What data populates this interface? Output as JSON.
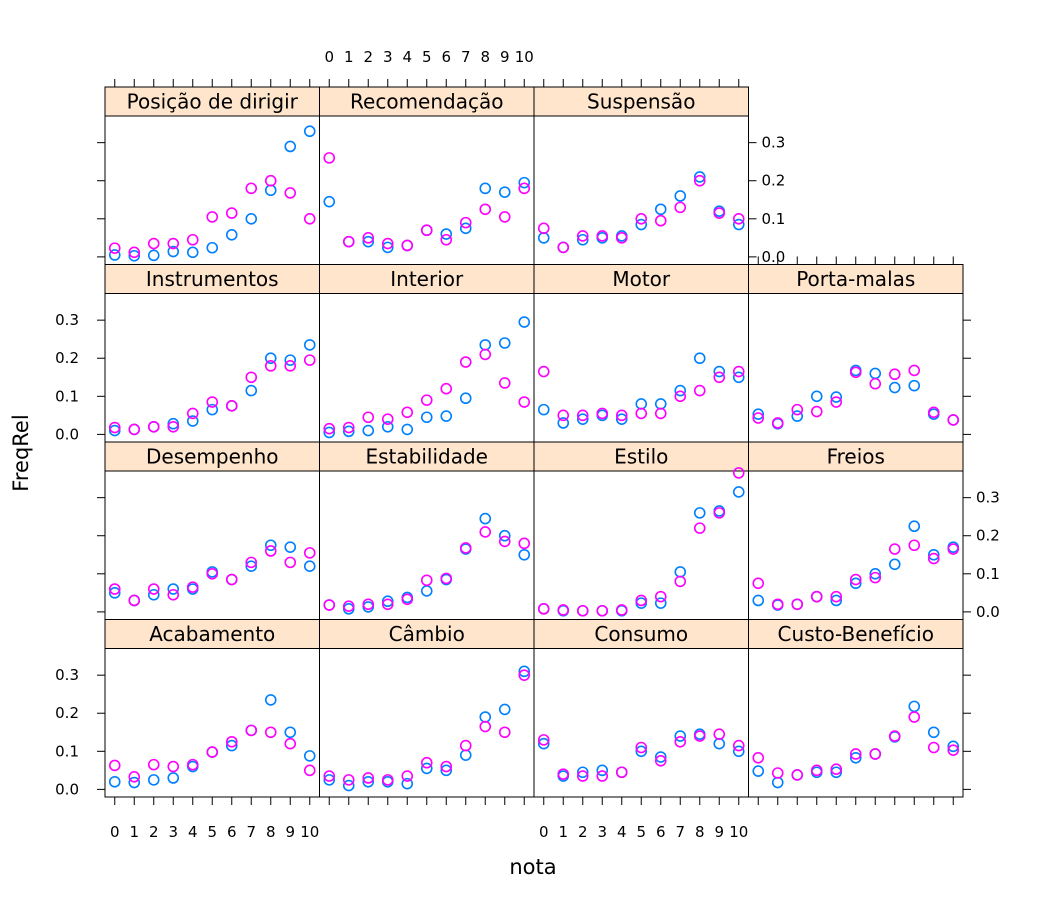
{
  "chart_data": {
    "type": "scatter",
    "layout": "lattice 4x4 panels",
    "xlabel": "nota",
    "ylabel": "FreqRel",
    "xticks": [
      "0",
      "1",
      "2",
      "3",
      "4",
      "5",
      "6",
      "7",
      "8",
      "9",
      "10"
    ],
    "yticks": [
      "0.0",
      "0.1",
      "0.2",
      "0.3"
    ],
    "ylim": [
      -0.02,
      0.37
    ],
    "colors": {
      "series_1": "#0080ff",
      "series_2": "#ff00ff",
      "strip": "#ffe5cc"
    },
    "panels": [
      {
        "name": "Posição de dirigir",
        "row": 0,
        "col": 0,
        "blue": [
          0.005,
          0.003,
          0.004,
          0.014,
          0.012,
          0.024,
          0.058,
          0.1,
          0.175,
          0.29,
          0.33
        ],
        "magenta": [
          0.023,
          0.012,
          0.035,
          0.035,
          0.045,
          0.105,
          0.115,
          0.18,
          0.2,
          0.168,
          0.1
        ]
      },
      {
        "name": "Recomendação",
        "row": 0,
        "col": 1,
        "blue": [
          0.145,
          0.04,
          0.04,
          0.025,
          0.03,
          0.07,
          0.06,
          0.075,
          0.18,
          0.17,
          0.195
        ],
        "magenta": [
          0.26,
          0.04,
          0.05,
          0.035,
          0.03,
          0.07,
          0.045,
          0.09,
          0.125,
          0.105,
          0.18
        ]
      },
      {
        "name": "Suspensão",
        "row": 0,
        "col": 2,
        "blue": [
          0.05,
          0.025,
          0.045,
          0.05,
          0.055,
          0.085,
          0.125,
          0.16,
          0.21,
          0.12,
          0.085
        ],
        "magenta": [
          0.075,
          0.025,
          0.055,
          0.055,
          0.05,
          0.1,
          0.095,
          0.13,
          0.2,
          0.115,
          0.1
        ]
      },
      {
        "name": "Instrumentos",
        "row": 1,
        "col": 0,
        "blue": [
          0.01,
          0.013,
          0.02,
          0.028,
          0.035,
          0.065,
          0.075,
          0.115,
          0.2,
          0.195,
          0.235
        ],
        "magenta": [
          0.018,
          0.013,
          0.02,
          0.02,
          0.055,
          0.085,
          0.075,
          0.15,
          0.18,
          0.18,
          0.195
        ]
      },
      {
        "name": "Interior",
        "row": 1,
        "col": 1,
        "blue": [
          0.005,
          0.008,
          0.01,
          0.02,
          0.013,
          0.045,
          0.048,
          0.095,
          0.235,
          0.24,
          0.295
        ],
        "magenta": [
          0.015,
          0.018,
          0.045,
          0.04,
          0.058,
          0.09,
          0.12,
          0.19,
          0.21,
          0.135,
          0.085
        ]
      },
      {
        "name": "Motor",
        "row": 1,
        "col": 2,
        "blue": [
          0.065,
          0.03,
          0.04,
          0.05,
          0.04,
          0.08,
          0.08,
          0.115,
          0.2,
          0.165,
          0.15
        ],
        "magenta": [
          0.165,
          0.05,
          0.05,
          0.055,
          0.05,
          0.055,
          0.055,
          0.1,
          0.115,
          0.15,
          0.165
        ]
      },
      {
        "name": "Porta-malas",
        "row": 1,
        "col": 3,
        "blue": [
          0.053,
          0.028,
          0.048,
          0.1,
          0.098,
          0.168,
          0.16,
          0.123,
          0.128,
          0.053,
          0.038
        ],
        "magenta": [
          0.043,
          0.03,
          0.065,
          0.06,
          0.085,
          0.163,
          0.133,
          0.158,
          0.168,
          0.058,
          0.038
        ]
      },
      {
        "name": "Desempenho",
        "row": 2,
        "col": 0,
        "blue": [
          0.05,
          0.03,
          0.045,
          0.06,
          0.06,
          0.105,
          0.085,
          0.12,
          0.175,
          0.17,
          0.12
        ],
        "magenta": [
          0.06,
          0.03,
          0.06,
          0.045,
          0.065,
          0.1,
          0.085,
          0.13,
          0.16,
          0.13,
          0.155
        ]
      },
      {
        "name": "Estabilidade",
        "row": 2,
        "col": 1,
        "blue": [
          0.018,
          0.008,
          0.013,
          0.028,
          0.038,
          0.055,
          0.085,
          0.165,
          0.245,
          0.2,
          0.15
        ],
        "magenta": [
          0.018,
          0.015,
          0.02,
          0.02,
          0.033,
          0.083,
          0.088,
          0.168,
          0.21,
          0.185,
          0.18
        ]
      },
      {
        "name": "Estilo",
        "row": 2,
        "col": 2,
        "blue": [
          0.008,
          0.003,
          0.003,
          0.003,
          0.003,
          0.023,
          0.023,
          0.105,
          0.26,
          0.265,
          0.315
        ],
        "magenta": [
          0.008,
          0.005,
          0.003,
          0.003,
          0.005,
          0.03,
          0.04,
          0.08,
          0.22,
          0.26,
          0.365
        ]
      },
      {
        "name": "Freios",
        "row": 2,
        "col": 3,
        "blue": [
          0.03,
          0.018,
          0.02,
          0.04,
          0.03,
          0.075,
          0.1,
          0.125,
          0.225,
          0.15,
          0.17
        ],
        "magenta": [
          0.075,
          0.02,
          0.02,
          0.04,
          0.04,
          0.085,
          0.09,
          0.165,
          0.175,
          0.14,
          0.165
        ]
      },
      {
        "name": "Acabamento",
        "row": 3,
        "col": 0,
        "blue": [
          0.02,
          0.018,
          0.025,
          0.03,
          0.06,
          0.098,
          0.115,
          0.155,
          0.235,
          0.15,
          0.088
        ],
        "magenta": [
          0.063,
          0.033,
          0.065,
          0.06,
          0.065,
          0.098,
          0.125,
          0.155,
          0.15,
          0.12,
          0.05
        ]
      },
      {
        "name": "Câmbio",
        "row": 3,
        "col": 1,
        "blue": [
          0.025,
          0.01,
          0.02,
          0.02,
          0.015,
          0.055,
          0.05,
          0.09,
          0.19,
          0.21,
          0.31
        ],
        "magenta": [
          0.035,
          0.025,
          0.03,
          0.025,
          0.035,
          0.07,
          0.06,
          0.115,
          0.165,
          0.15,
          0.3
        ]
      },
      {
        "name": "Consumo",
        "row": 3,
        "col": 2,
        "blue": [
          0.12,
          0.035,
          0.045,
          0.05,
          0.045,
          0.1,
          0.085,
          0.14,
          0.145,
          0.12,
          0.1
        ],
        "magenta": [
          0.13,
          0.04,
          0.035,
          0.035,
          0.045,
          0.11,
          0.075,
          0.125,
          0.14,
          0.145,
          0.115
        ]
      },
      {
        "name": "Custo-Benefício",
        "row": 3,
        "col": 3,
        "blue": [
          0.048,
          0.018,
          0.038,
          0.045,
          0.045,
          0.083,
          0.093,
          0.138,
          0.218,
          0.15,
          0.113
        ],
        "magenta": [
          0.083,
          0.043,
          0.038,
          0.05,
          0.053,
          0.093,
          0.093,
          0.14,
          0.19,
          0.11,
          0.103
        ]
      }
    ]
  }
}
